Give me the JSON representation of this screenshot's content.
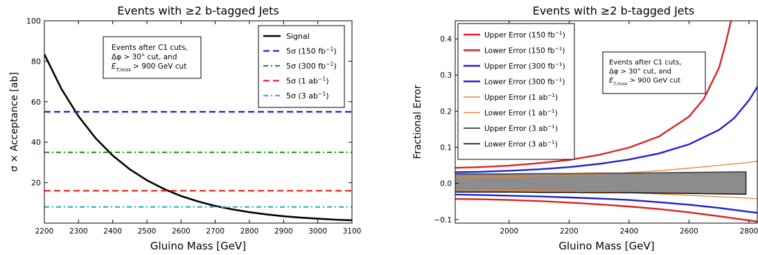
{
  "chart_data": [
    {
      "type": "line",
      "title": "Events with ≥2 b-tagged Jets",
      "xlabel": "Gluino Mass [GeV]",
      "ylabel": "σ × Acceptance [ab]",
      "xlim": [
        2200,
        3100
      ],
      "ylim": [
        0,
        100
      ],
      "xticks": [
        2200,
        2300,
        2400,
        2500,
        2600,
        2700,
        2800,
        2900,
        3000,
        3100
      ],
      "yticks": [
        20,
        40,
        60,
        80,
        100
      ],
      "grid": false,
      "legend_position": "top-right",
      "annotation": [
        "Events after C1 cuts,",
        "Δφ > 30° cut, and",
        "E_T,miss > 900 GeV cut"
      ],
      "series": [
        {
          "name": "Signal",
          "style": "solid",
          "color": "#000000",
          "x": [
            2200,
            2250,
            2300,
            2350,
            2400,
            2450,
            2500,
            2550,
            2600,
            2650,
            2700,
            2750,
            2800,
            2850,
            2900,
            2950,
            3000,
            3050,
            3100
          ],
          "y": [
            83.5,
            66.3,
            52.8,
            42.0,
            33.4,
            26.6,
            21.2,
            16.9,
            13.4,
            10.7,
            8.5,
            6.8,
            5.4,
            4.3,
            3.4,
            2.7,
            2.2,
            1.7,
            1.4
          ]
        },
        {
          "name": "5σ (150 fb⁻¹)",
          "style": "dashed",
          "color": "#1f1fd6",
          "x": [
            2200,
            3100
          ],
          "y": [
            55,
            55
          ]
        },
        {
          "name": "5σ (300 fb⁻¹)",
          "style": "dashdot",
          "color": "#1f9e1f",
          "x": [
            2200,
            3100
          ],
          "y": [
            35,
            35
          ]
        },
        {
          "name": "5σ (1 ab⁻¹)",
          "style": "dashed",
          "color": "#e02020",
          "x": [
            2200,
            3100
          ],
          "y": [
            16,
            16
          ]
        },
        {
          "name": "5σ (3 ab⁻¹)",
          "style": "dashdot",
          "color": "#2ab5cc",
          "x": [
            2200,
            3100
          ],
          "y": [
            8,
            8
          ]
        }
      ]
    },
    {
      "type": "line",
      "title": "Events with ≥2 b-tagged Jets",
      "xlabel": "Gluino Mass [GeV]",
      "ylabel": "Fractional Error",
      "xlim": [
        1820,
        2830
      ],
      "ylim": [
        -0.11,
        0.45
      ],
      "xticks": [
        2000,
        2200,
        2400,
        2600,
        2800
      ],
      "yticks": [
        -0.1,
        0.0,
        0.1,
        0.2,
        0.3,
        0.4
      ],
      "ytick_labels": [
        "−0.1",
        "0.0",
        "0.1",
        "0.2",
        "0.3",
        "0.4"
      ],
      "grid": false,
      "legend_position": "top-left",
      "annotation": [
        "Events after C1 cuts,",
        "Δφ > 30° cut, and",
        "E_T,miss > 900 GeV cut"
      ],
      "series": [
        {
          "name": "Upper Error (150 fb⁻¹)",
          "color": "#e02020",
          "width": 2.4,
          "x": [
            1820,
            1900,
            2000,
            2100,
            2200,
            2300,
            2400,
            2500,
            2600,
            2650,
            2700,
            2720,
            2740
          ],
          "y": [
            0.043,
            0.045,
            0.049,
            0.056,
            0.065,
            0.079,
            0.099,
            0.13,
            0.185,
            0.235,
            0.32,
            0.38,
            0.45
          ]
        },
        {
          "name": "Lower Error (150 fb⁻¹)",
          "color": "#e02020",
          "width": 2.4,
          "x": [
            1820,
            1900,
            2000,
            2100,
            2200,
            2300,
            2400,
            2500,
            2600,
            2700,
            2830
          ],
          "y": [
            -0.043,
            -0.044,
            -0.046,
            -0.049,
            -0.053,
            -0.058,
            -0.064,
            -0.071,
            -0.08,
            -0.091,
            -0.106
          ]
        },
        {
          "name": "Upper Error (300 fb⁻¹)",
          "color": "#1f1fd6",
          "width": 2.4,
          "x": [
            1820,
            1900,
            2000,
            2100,
            2200,
            2300,
            2400,
            2500,
            2600,
            2700,
            2750,
            2800,
            2830
          ],
          "y": [
            0.031,
            0.032,
            0.035,
            0.039,
            0.045,
            0.054,
            0.066,
            0.083,
            0.108,
            0.148,
            0.18,
            0.23,
            0.27
          ]
        },
        {
          "name": "Lower Error (300 fb⁻¹)",
          "color": "#1f1fd6",
          "width": 2.4,
          "x": [
            1820,
            1900,
            2000,
            2100,
            2200,
            2300,
            2400,
            2500,
            2600,
            2700,
            2830
          ],
          "y": [
            -0.031,
            -0.032,
            -0.034,
            -0.036,
            -0.039,
            -0.042,
            -0.046,
            -0.052,
            -0.059,
            -0.068,
            -0.082
          ]
        },
        {
          "name": "Upper Error (1 ab⁻¹)",
          "color": "#f08030",
          "width": 1.3,
          "x": [
            1820,
            1900,
            2000,
            2100,
            2200,
            2300,
            2400,
            2500,
            2600,
            2700,
            2800,
            2830
          ],
          "y": [
            0.017,
            0.018,
            0.019,
            0.021,
            0.023,
            0.026,
            0.03,
            0.035,
            0.042,
            0.05,
            0.058,
            0.062
          ]
        },
        {
          "name": "Lower Error (1 ab⁻¹)",
          "color": "#f08030",
          "width": 1.3,
          "x": [
            1820,
            1900,
            2000,
            2100,
            2200,
            2300,
            2400,
            2500,
            2600,
            2700,
            2800,
            2830
          ],
          "y": [
            -0.017,
            -0.018,
            -0.019,
            -0.02,
            -0.022,
            -0.024,
            -0.026,
            -0.029,
            -0.033,
            -0.037,
            -0.041,
            -0.043
          ]
        },
        {
          "name": "Upper Error (3 ab⁻¹)",
          "color": "#555555",
          "width": 2.0,
          "x": [
            1820,
            1900,
            2000,
            2100,
            2200,
            2300,
            2400,
            2500,
            2600,
            2700,
            2790
          ],
          "y": [
            0.026,
            0.026,
            0.026,
            0.027,
            0.027,
            0.028,
            0.028,
            0.029,
            0.03,
            0.031,
            0.032
          ]
        },
        {
          "name": "Lower Error (3 ab⁻¹)",
          "color": "#000000",
          "width": 1.3,
          "x": [
            1820,
            1900,
            2000,
            2100,
            2200,
            2300,
            2400,
            2500,
            2600,
            2700,
            2790
          ],
          "y": [
            -0.024,
            -0.024,
            -0.024,
            -0.025,
            -0.025,
            -0.026,
            -0.026,
            -0.027,
            -0.028,
            -0.029,
            -0.03
          ]
        }
      ]
    }
  ]
}
